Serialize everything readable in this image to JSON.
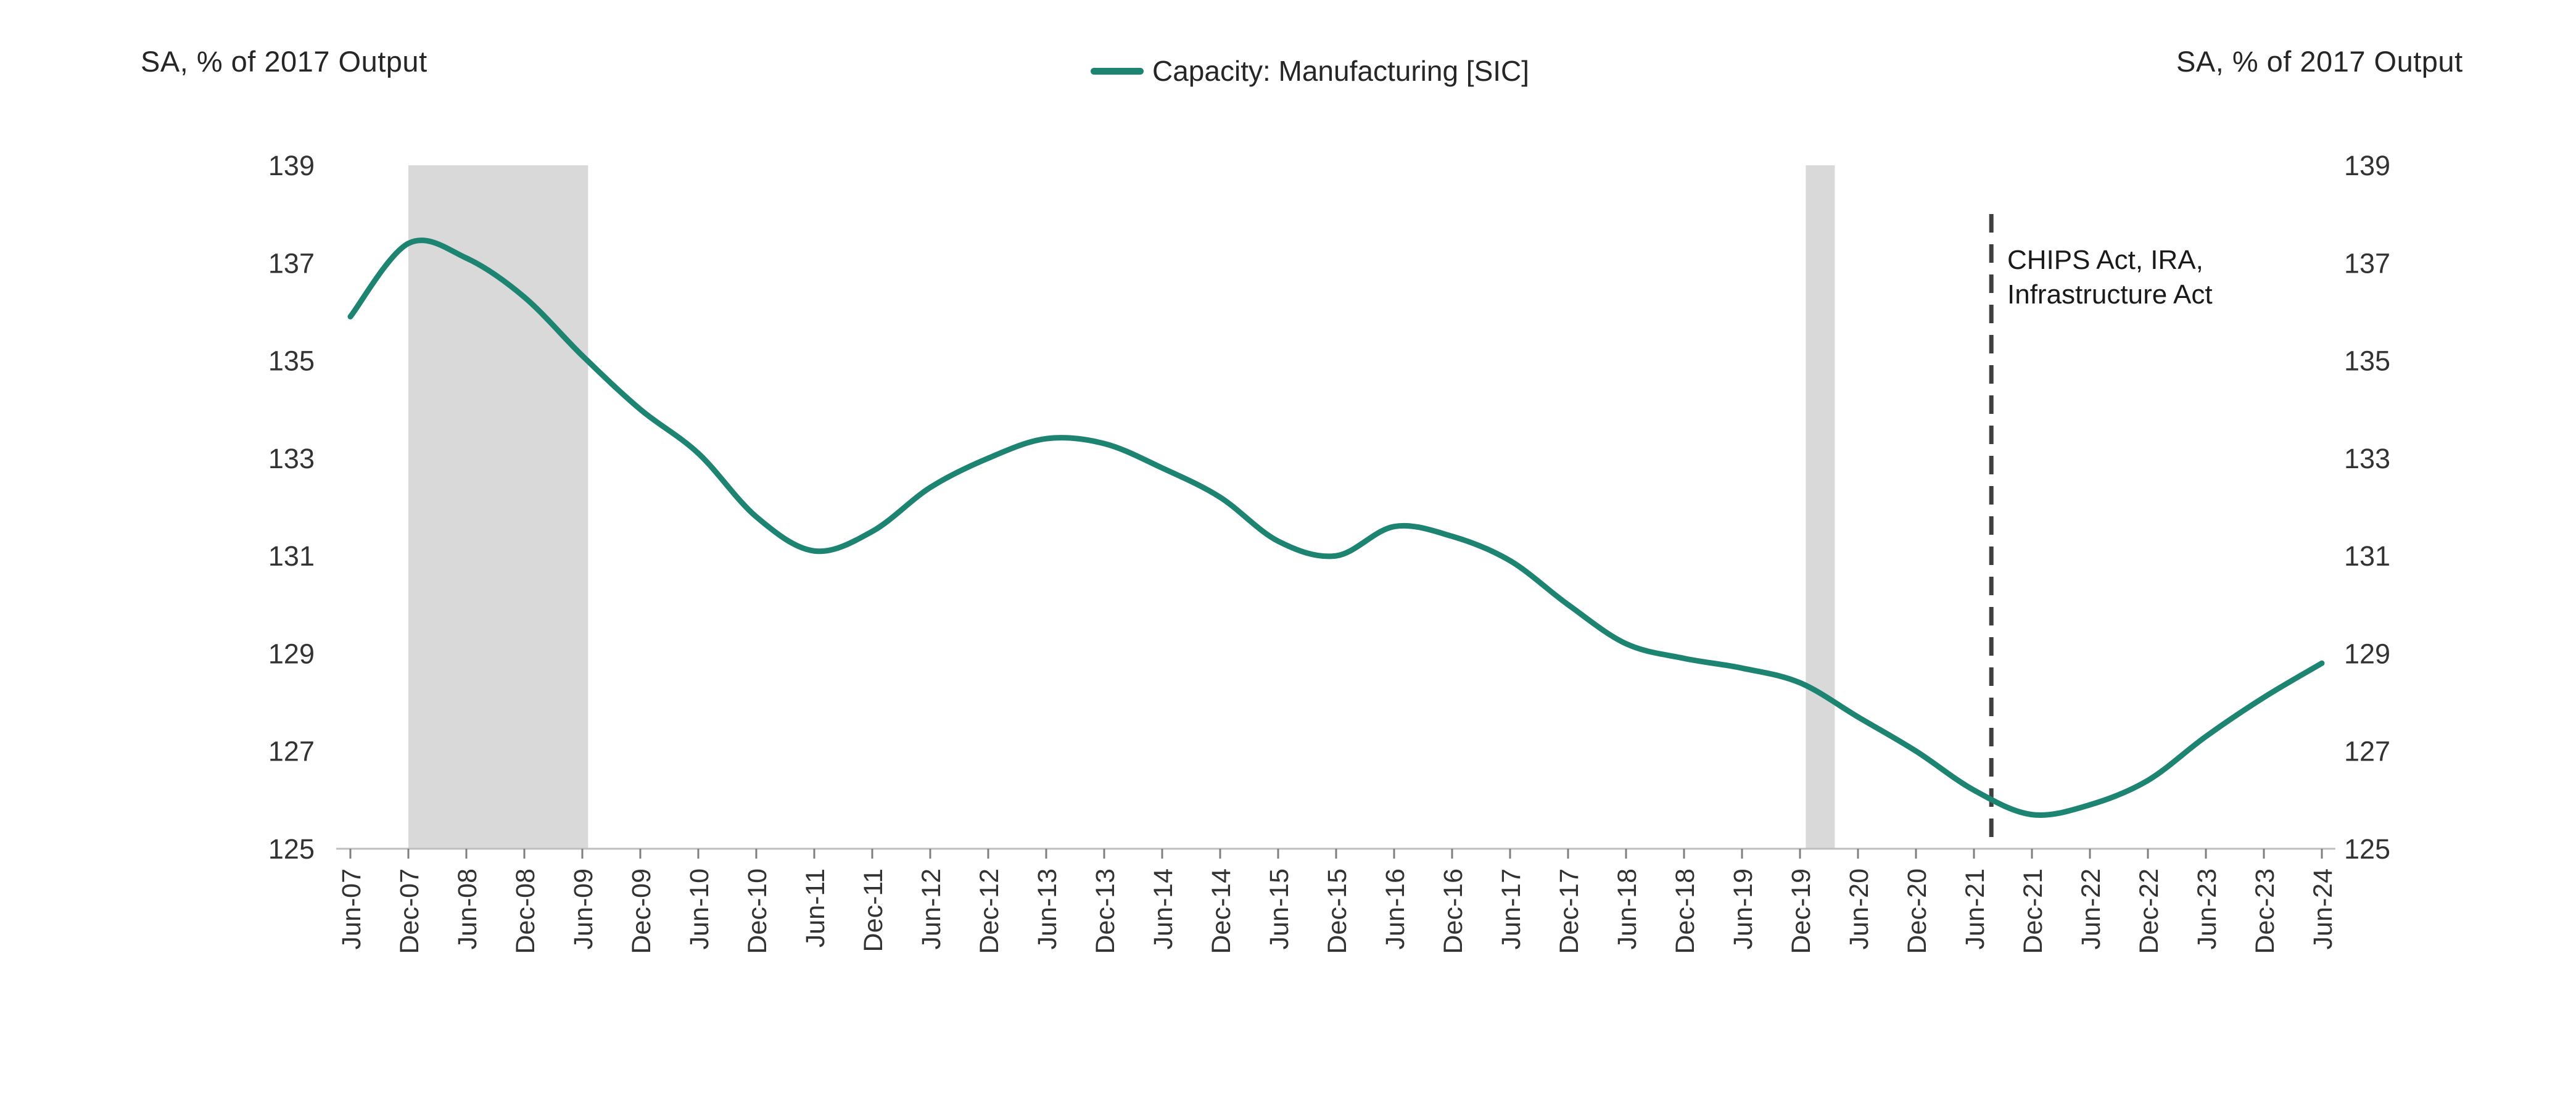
{
  "page": {
    "background": "#ffffff"
  },
  "header": {
    "left_axis_title": "SA, % of 2017 Output",
    "right_axis_title": "SA, % of 2017 Output"
  },
  "legend": {
    "label": "Capacity: Manufacturing [SIC]",
    "swatch_color": "#1E8472"
  },
  "annotation": {
    "line1": "CHIPS Act, IRA,",
    "line2": "Infrastructure Act"
  },
  "chart_data": {
    "type": "line",
    "title": "Capacity: Manufacturing [SIC]",
    "categories": [
      "Jun-07",
      "Dec-07",
      "Jun-08",
      "Dec-08",
      "Jun-09",
      "Dec-09",
      "Jun-10",
      "Dec-10",
      "Jun-11",
      "Dec-11",
      "Jun-12",
      "Dec-12",
      "Jun-13",
      "Dec-13",
      "Jun-14",
      "Dec-14",
      "Jun-15",
      "Dec-15",
      "Jun-16",
      "Dec-16",
      "Jun-17",
      "Dec-17",
      "Jun-18",
      "Dec-18",
      "Jun-19",
      "Dec-19",
      "Jun-20",
      "Dec-20",
      "Jun-21",
      "Dec-21",
      "Jun-22",
      "Dec-22",
      "Jun-23",
      "Dec-23",
      "Jun-24"
    ],
    "series": [
      {
        "name": "Capacity: Manufacturing [SIC]",
        "color": "#1E8472",
        "values": [
          135.9,
          137.4,
          137.1,
          136.3,
          135.1,
          134.0,
          133.1,
          131.8,
          131.1,
          131.5,
          132.4,
          133.0,
          133.4,
          133.3,
          132.8,
          132.2,
          131.3,
          131.0,
          131.6,
          131.4,
          130.9,
          130.0,
          129.2,
          128.9,
          128.7,
          128.4,
          127.7,
          127.0,
          126.2,
          125.7,
          125.9,
          126.4,
          127.3,
          128.1,
          128.8
        ]
      }
    ],
    "ylabel_left": "SA, % of 2017 Output",
    "ylabel_right": "SA, % of 2017 Output",
    "ylim": [
      125,
      139
    ],
    "yticks": [
      139,
      137,
      135,
      133,
      131,
      129,
      127,
      125
    ],
    "grid": false,
    "legend_position": "top-center",
    "band_color": "#d9d9d9",
    "recession_bands": [
      {
        "name": "great-recession",
        "start_label": "Dec-07",
        "end_label": "Jun-09",
        "start_index": 1.0,
        "end_index": 4.1
      },
      {
        "name": "covid-recession",
        "start_label": "Jan-20",
        "end_label": "Apr-20",
        "start_index": 25.1,
        "end_index": 25.6
      }
    ],
    "event_line": {
      "index": 28.3,
      "style": "dashed",
      "color": "#3f3f3f",
      "label": "CHIPS Act, IRA, Infrastructure Act"
    }
  }
}
